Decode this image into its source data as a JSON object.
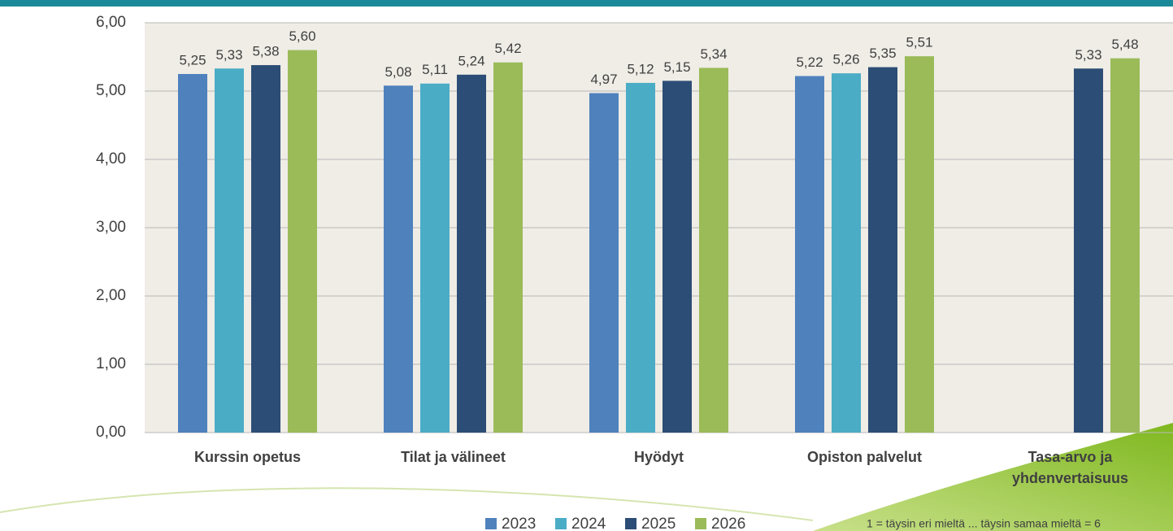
{
  "chart_data": {
    "type": "bar",
    "categories": [
      "Kurssin opetus",
      "Tilat ja välineet",
      "Hyödyt",
      "Opiston palvelut",
      "Tasa-arvo ja yhdenvertaisuus"
    ],
    "series": [
      {
        "name": "2023",
        "color": "#4f81bd",
        "values": [
          5.25,
          5.08,
          4.97,
          5.22,
          null
        ],
        "value_labels": [
          "5,25",
          "5,08",
          "4,97",
          "5,22",
          null
        ]
      },
      {
        "name": "2024",
        "color": "#4bacc6",
        "values": [
          5.33,
          5.11,
          5.12,
          5.26,
          null
        ],
        "value_labels": [
          "5,33",
          "5,11",
          "5,12",
          "5,26",
          null
        ]
      },
      {
        "name": "2025",
        "color": "#2c4d75",
        "values": [
          5.38,
          5.24,
          5.15,
          5.35,
          5.33
        ],
        "value_labels": [
          "5,38",
          "5,24",
          "5,15",
          "5,35",
          "5,33"
        ]
      },
      {
        "name": "2026",
        "color": "#9bbb59",
        "values": [
          5.6,
          5.42,
          5.34,
          5.51,
          5.48
        ],
        "value_labels": [
          "5,60",
          "5,42",
          "5,34",
          "5,51",
          "5,48"
        ]
      }
    ],
    "ylim": [
      0,
      6
    ],
    "yticks": [
      {
        "value": 0,
        "label": "0,00"
      },
      {
        "value": 1,
        "label": "1,00"
      },
      {
        "value": 2,
        "label": "2,00"
      },
      {
        "value": 3,
        "label": "3,00"
      },
      {
        "value": 4,
        "label": "4,00"
      },
      {
        "value": 5,
        "label": "5,00"
      },
      {
        "value": 6,
        "label": "6,00"
      }
    ],
    "grid": true,
    "note": "1 = täysin eri mieltä ... täysin samaa mieltä = 6"
  }
}
